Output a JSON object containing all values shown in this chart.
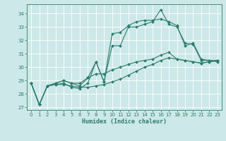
{
  "xlabel": "Humidex (Indice chaleur)",
  "background_color": "#cde8e8",
  "grid_color": "#ffffff",
  "line_color": "#2d7d6e",
  "xlim": [
    -0.5,
    23.5
  ],
  "ylim": [
    26.8,
    34.7
  ],
  "yticks": [
    27,
    28,
    29,
    30,
    31,
    32,
    33,
    34
  ],
  "xticks": [
    0,
    1,
    2,
    3,
    4,
    5,
    6,
    7,
    8,
    9,
    10,
    11,
    12,
    13,
    14,
    15,
    16,
    17,
    18,
    19,
    20,
    21,
    22,
    23
  ],
  "series_A": [
    28.8,
    27.2,
    28.6,
    28.7,
    28.8,
    28.5,
    28.4,
    28.8,
    30.4,
    28.9,
    31.6,
    31.6,
    33.0,
    33.0,
    33.2,
    33.4,
    34.3,
    33.2,
    33.0,
    31.8,
    31.7,
    30.5,
    30.5,
    30.5
  ],
  "series_B": [
    28.8,
    27.2,
    28.6,
    28.8,
    29.0,
    28.8,
    28.6,
    29.2,
    30.4,
    28.9,
    32.5,
    32.6,
    33.1,
    33.4,
    33.5,
    33.5,
    33.6,
    33.4,
    33.1,
    31.6,
    31.8,
    30.6,
    30.5,
    30.4
  ],
  "series_C": [
    28.8,
    27.2,
    28.6,
    28.8,
    29.0,
    28.8,
    28.8,
    29.2,
    29.5,
    29.5,
    29.8,
    30.0,
    30.2,
    30.4,
    30.5,
    30.6,
    30.9,
    31.1,
    30.6,
    30.5,
    30.4,
    30.3,
    30.4,
    30.5
  ],
  "series_D": [
    28.8,
    27.2,
    28.6,
    28.7,
    28.7,
    28.6,
    28.5,
    28.5,
    28.6,
    28.7,
    28.9,
    29.1,
    29.4,
    29.7,
    30.0,
    30.2,
    30.5,
    30.7,
    30.6,
    30.5,
    30.4,
    30.3,
    30.4,
    30.5
  ]
}
